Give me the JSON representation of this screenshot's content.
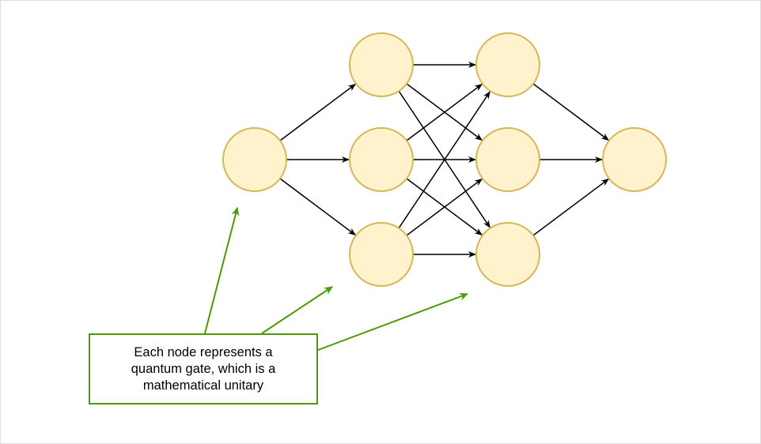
{
  "diagram": {
    "type": "quantum-circuit-network",
    "layers": [
      1,
      3,
      3,
      1
    ],
    "connections": "fully-connected between consecutive layers",
    "colors": {
      "node_fill": "#fff2cc",
      "node_stroke": "#d6b656",
      "edge": "#000000",
      "annotation": "#4d9900"
    }
  },
  "annotation": {
    "text": "Each node represents a quantum gate, which is a mathematical unitary"
  }
}
